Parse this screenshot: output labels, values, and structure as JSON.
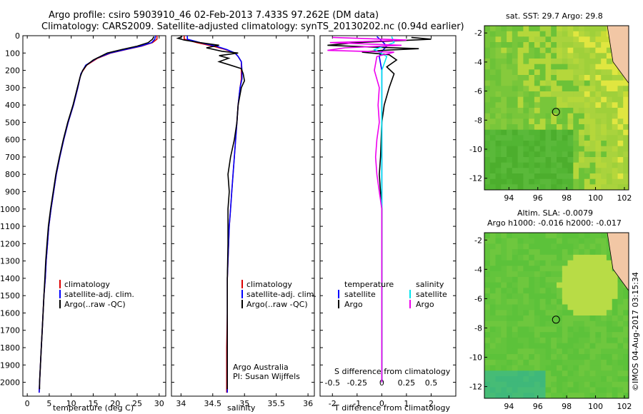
{
  "header": {
    "line1": "Argo profile: csiro 5903910_46 02-Feb-2013 7.433S 97.262E (DM data)",
    "line2": "Climatology: CARS2009. Satellite-adjusted climatology: synTS_20130202.nc (0.94d earlier)"
  },
  "colors": {
    "climatology": "#dd0000",
    "satellite": "#0000ff",
    "argo": "#000000",
    "salinity_satellite": "#00e5ee",
    "salinity_argo": "#ee00ee"
  },
  "chart_data": [
    {
      "type": "line",
      "id": "temperature-profile",
      "xlabel": "temperature (deg C)",
      "ylabel": "",
      "xlim": [
        -1,
        31.5
      ],
      "ylim": [
        0,
        2080
      ],
      "y_inverted": true,
      "xticks": [
        0,
        5,
        10,
        15,
        20,
        25,
        30
      ],
      "yticks": [
        0,
        100,
        200,
        300,
        400,
        500,
        600,
        700,
        800,
        900,
        1000,
        1100,
        1200,
        1300,
        1400,
        1500,
        1600,
        1700,
        1800,
        1900,
        2000
      ],
      "legend": [
        "climatology",
        "satellite-adj. clim.",
        "Argo(..raw -QC)"
      ],
      "series": [
        {
          "name": "climatology",
          "color": "climatology",
          "points": [
            [
              29.5,
              0
            ],
            [
              29.5,
              20
            ],
            [
              28.5,
              40
            ],
            [
              26,
              60
            ],
            [
              22.5,
              80
            ],
            [
              19,
              100
            ],
            [
              16,
              130
            ],
            [
              13.5,
              170
            ],
            [
              12.2,
              220
            ],
            [
              11.5,
              300
            ],
            [
              10.5,
              400
            ],
            [
              9.3,
              500
            ],
            [
              8.3,
              600
            ],
            [
              7.4,
              700
            ],
            [
              6.6,
              800
            ],
            [
              6,
              900
            ],
            [
              5.4,
              1000
            ],
            [
              4.9,
              1100
            ],
            [
              4.6,
              1200
            ],
            [
              4.3,
              1300
            ],
            [
              4.1,
              1400
            ],
            [
              3.8,
              1500
            ],
            [
              3.6,
              1600
            ],
            [
              3.4,
              1700
            ],
            [
              3.2,
              1800
            ],
            [
              3,
              1900
            ],
            [
              2.8,
              2000
            ],
            [
              2.7,
              2060
            ]
          ]
        },
        {
          "name": "satellite-adj. clim.",
          "color": "satellite",
          "points": [
            [
              29.2,
              0
            ],
            [
              29,
              20
            ],
            [
              28.3,
              40
            ],
            [
              25.8,
              60
            ],
            [
              22.3,
              80
            ],
            [
              18.8,
              100
            ],
            [
              15.8,
              130
            ],
            [
              13.3,
              170
            ],
            [
              12.2,
              220
            ],
            [
              11.5,
              300
            ],
            [
              10.5,
              400
            ],
            [
              9.3,
              500
            ],
            [
              8.3,
              600
            ],
            [
              7.4,
              700
            ],
            [
              6.6,
              800
            ],
            [
              6,
              900
            ],
            [
              5.4,
              1000
            ],
            [
              4.9,
              1100
            ],
            [
              4.6,
              1200
            ],
            [
              4.3,
              1300
            ],
            [
              4.1,
              1400
            ],
            [
              3.8,
              1500
            ],
            [
              3.6,
              1600
            ],
            [
              3.4,
              1700
            ],
            [
              3.2,
              1800
            ],
            [
              3,
              1900
            ],
            [
              2.8,
              2000
            ],
            [
              2.7,
              2060
            ]
          ]
        },
        {
          "name": "Argo(..raw -QC)",
          "color": "argo",
          "points": [
            [
              28.8,
              5
            ],
            [
              28.5,
              20
            ],
            [
              27.5,
              40
            ],
            [
              25,
              60
            ],
            [
              21.5,
              80
            ],
            [
              18.2,
              100
            ],
            [
              15,
              140
            ],
            [
              13.5,
              170
            ],
            [
              12.6,
              200
            ],
            [
              12,
              240
            ],
            [
              11.4,
              300
            ],
            [
              10.4,
              400
            ],
            [
              9.2,
              500
            ],
            [
              8.2,
              600
            ],
            [
              7.3,
              700
            ],
            [
              6.5,
              800
            ],
            [
              5.9,
              900
            ],
            [
              5.3,
              1000
            ],
            [
              4.8,
              1100
            ],
            [
              4.5,
              1200
            ],
            [
              4.2,
              1300
            ],
            [
              4,
              1400
            ],
            [
              3.8,
              1500
            ],
            [
              3.6,
              1600
            ],
            [
              3.4,
              1700
            ],
            [
              3.2,
              1800
            ],
            [
              3,
              1900
            ],
            [
              2.8,
              2000
            ],
            [
              2.8,
              2040
            ]
          ]
        }
      ]
    },
    {
      "type": "line",
      "id": "salinity-profile",
      "xlabel": "salinity",
      "xlim": [
        33.85,
        36.1
      ],
      "ylim": [
        0,
        2080
      ],
      "y_inverted": true,
      "xticks": [
        34,
        34.5,
        35,
        35.5,
        36
      ],
      "legend": [
        "climatology",
        "satellite-adj. clim.",
        "Argo(..raw -QC)"
      ],
      "annotation": [
        "Argo Australia",
        "PI: Susan Wijffels"
      ],
      "series": [
        {
          "name": "climatology",
          "color": "climatology",
          "points": [
            [
              34.05,
              0
            ],
            [
              34.05,
              20
            ],
            [
              34.25,
              40
            ],
            [
              34.5,
              60
            ],
            [
              34.7,
              80
            ],
            [
              34.85,
              100
            ],
            [
              34.9,
              120
            ],
            [
              34.95,
              150
            ],
            [
              34.95,
              200
            ],
            [
              34.95,
              250
            ],
            [
              34.93,
              300
            ],
            [
              34.9,
              400
            ],
            [
              34.88,
              500
            ],
            [
              34.86,
              600
            ],
            [
              34.84,
              700
            ],
            [
              34.82,
              800
            ],
            [
              34.8,
              900
            ],
            [
              34.78,
              1000
            ],
            [
              34.76,
              1100
            ],
            [
              34.75,
              1200
            ],
            [
              34.74,
              1300
            ],
            [
              34.73,
              1400
            ],
            [
              34.73,
              1600
            ],
            [
              34.72,
              1800
            ],
            [
              34.72,
              2000
            ],
            [
              34.72,
              2060
            ]
          ]
        },
        {
          "name": "satellite-adj. clim.",
          "color": "satellite",
          "points": [
            [
              34.1,
              0
            ],
            [
              34.1,
              20
            ],
            [
              34.3,
              40
            ],
            [
              34.55,
              60
            ],
            [
              34.72,
              80
            ],
            [
              34.85,
              100
            ],
            [
              34.9,
              120
            ],
            [
              34.95,
              150
            ],
            [
              34.96,
              200
            ],
            [
              34.96,
              250
            ],
            [
              34.93,
              300
            ],
            [
              34.9,
              400
            ],
            [
              34.88,
              500
            ],
            [
              34.86,
              600
            ],
            [
              34.84,
              700
            ],
            [
              34.82,
              800
            ],
            [
              34.8,
              900
            ],
            [
              34.78,
              1000
            ],
            [
              34.76,
              1100
            ],
            [
              34.75,
              1200
            ],
            [
              34.74,
              1300
            ],
            [
              34.73,
              1400
            ],
            [
              34.73,
              1600
            ],
            [
              34.73,
              1800
            ],
            [
              34.73,
              2000
            ],
            [
              34.73,
              2060
            ]
          ]
        },
        {
          "name": "Argo(..raw -QC)",
          "color": "argo",
          "points": [
            [
              34.02,
              5
            ],
            [
              33.95,
              15
            ],
            [
              34.05,
              25
            ],
            [
              34.3,
              40
            ],
            [
              34.6,
              55
            ],
            [
              34.4,
              70
            ],
            [
              34.65,
              90
            ],
            [
              34.9,
              100
            ],
            [
              34.6,
              115
            ],
            [
              34.75,
              130
            ],
            [
              34.6,
              150
            ],
            [
              34.78,
              170
            ],
            [
              34.95,
              190
            ],
            [
              34.98,
              220
            ],
            [
              35,
              260
            ],
            [
              34.95,
              300
            ],
            [
              34.9,
              400
            ],
            [
              34.88,
              500
            ],
            [
              34.84,
              600
            ],
            [
              34.78,
              700
            ],
            [
              34.74,
              800
            ],
            [
              34.76,
              900
            ],
            [
              34.74,
              1000
            ],
            [
              34.74,
              1200
            ],
            [
              34.73,
              1400
            ],
            [
              34.73,
              1600
            ],
            [
              34.73,
              2000
            ],
            [
              34.73,
              2040
            ]
          ]
        }
      ]
    },
    {
      "type": "line",
      "id": "difference-profile",
      "xlabel": "T difference from climatology",
      "xlabel_top": "S difference from climatology",
      "xlim": [
        -2.5,
        3
      ],
      "ylim": [
        0,
        2080
      ],
      "y_inverted": true,
      "xticks_T": [
        -2,
        -1,
        0,
        1,
        2
      ],
      "xticks_S": [
        [
          "-0.5",
          -2
        ],
        [
          "-0.25",
          -1
        ],
        [
          "0",
          0
        ],
        [
          "0.25",
          1
        ],
        [
          "0.5",
          2
        ]
      ],
      "legend": {
        "temperature": [
          "satellite",
          "Argo"
        ],
        "salinity": [
          "satellite",
          "Argo"
        ],
        "temperature_heading": "temperature",
        "salinity_heading": "salinity"
      },
      "series": [
        {
          "name": "temperature satellite",
          "color": "satellite",
          "points": [
            [
              -0.2,
              5
            ],
            [
              0,
              30
            ],
            [
              0.2,
              60
            ],
            [
              0,
              90
            ],
            [
              -0.1,
              120
            ],
            [
              0,
              200
            ],
            [
              0,
              400
            ],
            [
              0,
              1000
            ],
            [
              0,
              2000
            ]
          ]
        },
        {
          "name": "temperature Argo",
          "color": "argo",
          "points": [
            [
              1.2,
              10
            ],
            [
              2,
              20
            ],
            [
              0.5,
              30
            ],
            [
              -1,
              40
            ],
            [
              -2.2,
              55
            ],
            [
              -0.5,
              65
            ],
            [
              1.5,
              75
            ],
            [
              0,
              85
            ],
            [
              -0.8,
              95
            ],
            [
              0.3,
              110
            ],
            [
              0.6,
              140
            ],
            [
              0.2,
              180
            ],
            [
              0.5,
              220
            ],
            [
              0.3,
              300
            ],
            [
              0.1,
              400
            ],
            [
              0,
              500
            ],
            [
              -0.05,
              700
            ],
            [
              -0.1,
              800
            ],
            [
              -0.05,
              900
            ],
            [
              0,
              1000
            ],
            [
              0,
              1400
            ],
            [
              0,
              2000
            ]
          ]
        },
        {
          "name": "salinity satellite",
          "color": "salinity_satellite",
          "points": [
            [
              0.4,
              5
            ],
            [
              0.5,
              40
            ],
            [
              -0.3,
              80
            ],
            [
              0.2,
              120
            ],
            [
              0,
              200
            ],
            [
              0,
              400
            ],
            [
              0,
              1000
            ],
            [
              0,
              2000
            ]
          ]
        },
        {
          "name": "salinity Argo",
          "color": "salinity_argo",
          "points": [
            [
              -2,
              10
            ],
            [
              1,
              25
            ],
            [
              -2.1,
              40
            ],
            [
              0.8,
              55
            ],
            [
              -1.5,
              70
            ],
            [
              -2.2,
              85
            ],
            [
              0.5,
              95
            ],
            [
              -0.2,
              120
            ],
            [
              -0.3,
              200
            ],
            [
              -0.1,
              300
            ],
            [
              -0.15,
              400
            ],
            [
              -0.1,
              500
            ],
            [
              -0.2,
              600
            ],
            [
              -0.25,
              700
            ],
            [
              -0.2,
              800
            ],
            [
              -0.1,
              900
            ],
            [
              0,
              1000
            ],
            [
              0,
              2000
            ]
          ]
        }
      ]
    },
    {
      "type": "heatmap",
      "id": "sst-map",
      "title": "sat. SST: 29.7 Argo: 29.8",
      "xticks": [
        94,
        96,
        98,
        100,
        102
      ],
      "yticks": [
        -2,
        -4,
        -6,
        -8,
        -10,
        -12
      ],
      "xlim": [
        92.3,
        102.3
      ],
      "ylim": [
        -12.8,
        -1.5
      ],
      "argo_position": [
        97.262,
        -7.433
      ]
    },
    {
      "type": "heatmap",
      "id": "sla-map",
      "title": "Altim. SLA: -0.0079",
      "subtitle": "Argo h1000: -0.016 h2000: -0.017",
      "xticks": [
        94,
        96,
        98,
        100,
        102
      ],
      "yticks": [
        -2,
        -4,
        -6,
        -8,
        -10,
        -12
      ],
      "xlim": [
        92.3,
        102.3
      ],
      "ylim": [
        -12.8,
        -1.5
      ],
      "argo_position": [
        97.262,
        -7.433
      ]
    }
  ],
  "footer": {
    "stamp": "©IMOS 04-Aug-2017 03:15:34"
  }
}
